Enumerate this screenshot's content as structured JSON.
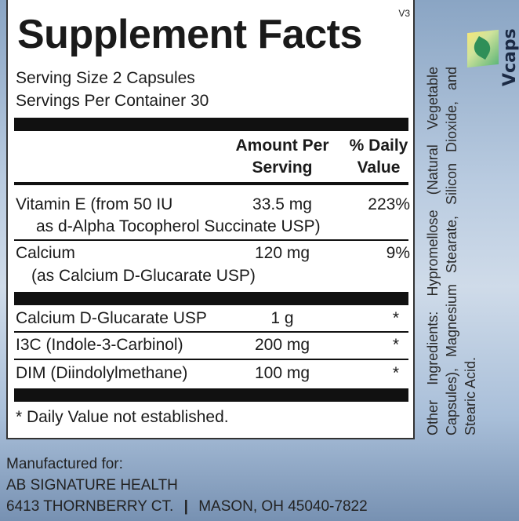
{
  "version": "V3",
  "title": "Supplement Facts",
  "serving_size": "Serving Size  2 Capsules",
  "servings_per_container": "Servings Per Container  30",
  "header": {
    "amount_line1": "Amount Per",
    "amount_line2": "Serving",
    "dv_line1": "% Daily",
    "dv_line2": "Value"
  },
  "rows": [
    {
      "name": "Vitamin E (from 50 IU",
      "sub": "as d-Alpha Tocopherol Succinate USP)",
      "amount": "33.5 mg",
      "dv": "223%"
    },
    {
      "name": "Calcium",
      "sub": "(as Calcium D-Glucarate USP)",
      "amount": "120 mg",
      "dv": "9%"
    },
    {
      "name": "Calcium D-Glucarate USP",
      "amount": "1 g",
      "dv": "*"
    },
    {
      "name": "I3C (Indole-3-Carbinol)",
      "amount": "200 mg",
      "dv": "*"
    },
    {
      "name": "DIM (Diindolylmethane)",
      "amount": "100 mg",
      "dv": "*"
    }
  ],
  "footnote": "* Daily Value not established.",
  "other_ingredients": "Other Ingredients: Hypromellose (Natural Vegetable Capsules), Magnesium Stearate, Silicon Dioxide, and Stearic Acid.",
  "logo_text": "Vcaps",
  "footer": {
    "line1": "Manufactured for:",
    "line2": "AB SIGNATURE HEALTH",
    "address": "6413 THORNBERRY CT.",
    "separator": "|",
    "city": "MASON, OH 45040-7822"
  }
}
